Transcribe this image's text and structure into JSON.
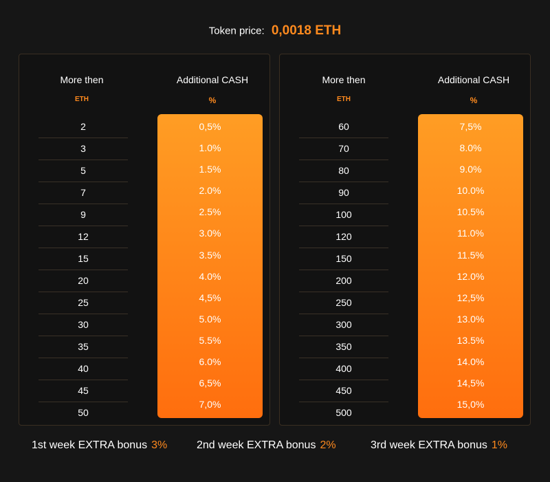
{
  "header": {
    "token_price_label": "Token price:",
    "token_price_value": "0,0018 ETH"
  },
  "tables": [
    {
      "col1_title": "More then",
      "col1_unit": "ETH",
      "col2_title": "Additional CASH",
      "col2_unit": "%",
      "eth": [
        "2",
        "3",
        "5",
        "7",
        "9",
        "12",
        "15",
        "20",
        "25",
        "30",
        "35",
        "40",
        "45",
        "50"
      ],
      "percent": [
        "0,5%",
        "1.0%",
        "1.5%",
        "2.0%",
        "2.5%",
        "3.0%",
        "3.5%",
        "4.0%",
        "4,5%",
        "5.0%",
        "5.5%",
        "6.0%",
        "6,5%",
        "7,0%"
      ]
    },
    {
      "col1_title": "More then",
      "col1_unit": "ETH",
      "col2_title": "Additional CASH",
      "col2_unit": "%",
      "eth": [
        "60",
        "70",
        "80",
        "90",
        "100",
        "120",
        "150",
        "200",
        "250",
        "300",
        "350",
        "400",
        "450",
        "500"
      ],
      "percent": [
        "7,5%",
        "8.0%",
        "9.0%",
        "10.0%",
        "10.5%",
        "11.0%",
        "11.5%",
        "12.0%",
        "12,5%",
        "13.0%",
        "13.5%",
        "14.0%",
        "14,5%",
        "15,0%"
      ]
    }
  ],
  "bonuses": [
    {
      "label": "1st week EXTRA bonus",
      "value": "3%"
    },
    {
      "label": "2nd week EXTRA bonus",
      "value": "2%"
    },
    {
      "label": "3rd week EXTRA bonus",
      "value": "1%"
    }
  ],
  "colors": {
    "accent": "#ff8a1e",
    "background": "#161616",
    "gradient_top": "#ff9d24",
    "gradient_bottom": "#ff6e0e"
  }
}
